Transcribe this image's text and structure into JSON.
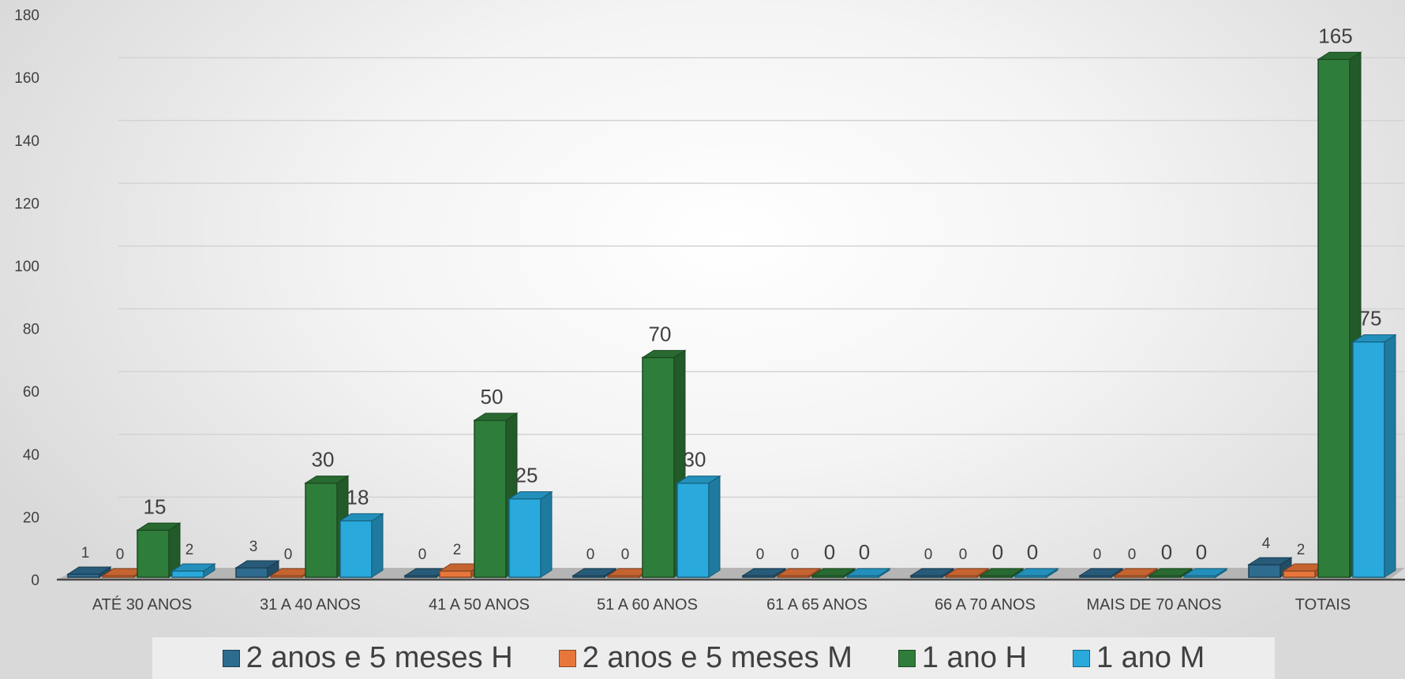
{
  "chart_data": {
    "type": "bar",
    "categories": [
      "ATÉ 30 ANOS",
      "31 A 40 ANOS",
      "41 A 50 ANOS",
      "51 A 60 ANOS",
      "61 A 65 ANOS",
      "66 A 70 ANOS",
      "MAIS DE 70 ANOS",
      "TOTAIS"
    ],
    "series": [
      {
        "name": "2 anos e 5 meses H",
        "values": [
          1,
          3,
          0,
          0,
          0,
          0,
          0,
          4
        ],
        "color": "#2e6b8e"
      },
      {
        "name": "2 anos e 5 meses M",
        "values": [
          0,
          0,
          2,
          0,
          0,
          0,
          0,
          2
        ],
        "color": "#e8763a"
      },
      {
        "name": "1 ano H",
        "values": [
          15,
          30,
          50,
          70,
          0,
          0,
          0,
          165
        ],
        "color": "#2f7d3a"
      },
      {
        "name": "1 ano M",
        "values": [
          2,
          18,
          25,
          30,
          0,
          0,
          0,
          75
        ],
        "color": "#29a9dc"
      }
    ],
    "yticks": [
      "0",
      "20",
      "40",
      "60",
      "80",
      "100",
      "120",
      "140",
      "160",
      "180"
    ],
    "ylim": [
      0,
      180
    ],
    "grid": true,
    "legend_position": "bottom"
  }
}
